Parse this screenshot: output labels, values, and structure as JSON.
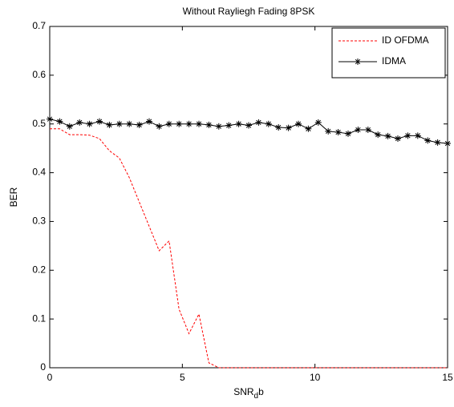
{
  "chart_data": {
    "type": "line",
    "title": "Without Rayliegh Fading 8PSK",
    "xlabel": "SNR_db",
    "ylabel": "BER",
    "x": [
      0,
      0.375,
      0.75,
      1.125,
      1.5,
      1.875,
      2.25,
      2.625,
      3,
      3.375,
      3.75,
      4.125,
      4.5,
      4.875,
      5.25,
      5.625,
      6,
      6.375,
      6.75,
      7.125,
      7.5,
      7.875,
      8.25,
      8.625,
      9,
      9.375,
      9.75,
      10.125,
      10.5,
      10.875,
      11.25,
      11.625,
      12,
      12.375,
      12.75,
      13.125,
      13.5,
      13.875,
      14.25,
      14.625,
      15
    ],
    "series": [
      {
        "name": "ID OFDMA",
        "color": "#ff0000",
        "dash": true,
        "marker": "none",
        "values": [
          0.49,
          0.49,
          0.478,
          0.478,
          0.477,
          0.47,
          0.445,
          0.43,
          0.39,
          0.34,
          0.29,
          0.24,
          0.26,
          0.12,
          0.07,
          0.11,
          0.01,
          0,
          0,
          0,
          0,
          0,
          0,
          0,
          0,
          0,
          0,
          0,
          0,
          0,
          0,
          0,
          0,
          0,
          0,
          0,
          0,
          0,
          0,
          0,
          0
        ]
      },
      {
        "name": "IDMA",
        "color": "#000000",
        "dash": false,
        "marker": "star",
        "values": [
          0.51,
          0.505,
          0.495,
          0.503,
          0.5,
          0.505,
          0.498,
          0.5,
          0.5,
          0.498,
          0.505,
          0.495,
          0.5,
          0.5,
          0.5,
          0.5,
          0.498,
          0.495,
          0.497,
          0.5,
          0.497,
          0.503,
          0.5,
          0.493,
          0.492,
          0.5,
          0.49,
          0.503,
          0.485,
          0.483,
          0.48,
          0.488,
          0.488,
          0.478,
          0.475,
          0.47,
          0.476,
          0.476,
          0.466,
          0.462,
          0.46
        ]
      }
    ],
    "xlim": [
      0,
      15
    ],
    "xticks": [
      0,
      5,
      10,
      15
    ],
    "ylim": [
      0,
      0.7
    ],
    "yticks": [
      0,
      0.1,
      0.2,
      0.3,
      0.4,
      0.5,
      0.6,
      0.7
    ],
    "legend": "top-right"
  }
}
